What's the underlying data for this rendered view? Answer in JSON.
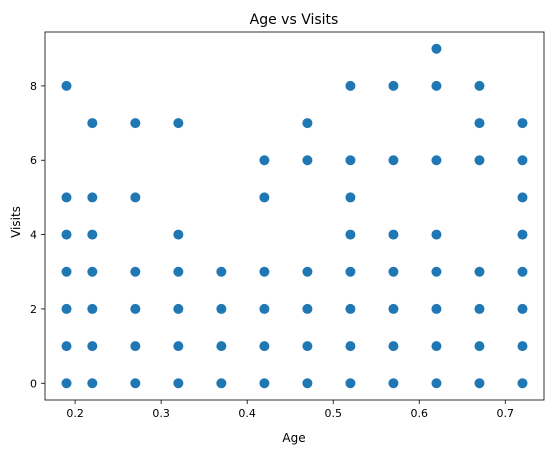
{
  "chart_data": {
    "type": "scatter",
    "title": "Age vs Visits",
    "xlabel": "Age",
    "ylabel": "Visits",
    "xlim": [
      0.165,
      0.745
    ],
    "ylim": [
      -0.45,
      9.45
    ],
    "xticks": [
      0.2,
      0.3,
      0.4,
      0.5,
      0.6,
      0.7
    ],
    "xtick_labels": [
      "0.2",
      "0.3",
      "0.4",
      "0.5",
      "0.6",
      "0.7"
    ],
    "yticks": [
      0,
      2,
      4,
      6,
      8
    ],
    "ytick_labels": [
      "0",
      "2",
      "4",
      "6",
      "8"
    ],
    "grid": false,
    "color": "#1f77b4",
    "series": [
      {
        "points": [
          [
            0.19,
            0
          ],
          [
            0.19,
            1
          ],
          [
            0.19,
            2
          ],
          [
            0.19,
            3
          ],
          [
            0.19,
            4
          ],
          [
            0.19,
            5
          ],
          [
            0.19,
            8
          ],
          [
            0.22,
            0
          ],
          [
            0.22,
            1
          ],
          [
            0.22,
            2
          ],
          [
            0.22,
            3
          ],
          [
            0.22,
            4
          ],
          [
            0.22,
            5
          ],
          [
            0.22,
            7
          ],
          [
            0.27,
            0
          ],
          [
            0.27,
            1
          ],
          [
            0.27,
            2
          ],
          [
            0.27,
            3
          ],
          [
            0.27,
            5
          ],
          [
            0.27,
            7
          ],
          [
            0.32,
            0
          ],
          [
            0.32,
            1
          ],
          [
            0.32,
            2
          ],
          [
            0.32,
            3
          ],
          [
            0.32,
            4
          ],
          [
            0.32,
            7
          ],
          [
            0.37,
            0
          ],
          [
            0.37,
            1
          ],
          [
            0.37,
            2
          ],
          [
            0.37,
            3
          ],
          [
            0.42,
            0
          ],
          [
            0.42,
            1
          ],
          [
            0.42,
            2
          ],
          [
            0.42,
            3
          ],
          [
            0.42,
            5
          ],
          [
            0.42,
            6
          ],
          [
            0.47,
            0
          ],
          [
            0.47,
            1
          ],
          [
            0.47,
            2
          ],
          [
            0.47,
            3
          ],
          [
            0.47,
            6
          ],
          [
            0.47,
            7
          ],
          [
            0.52,
            0
          ],
          [
            0.52,
            1
          ],
          [
            0.52,
            2
          ],
          [
            0.52,
            3
          ],
          [
            0.52,
            4
          ],
          [
            0.52,
            5
          ],
          [
            0.52,
            6
          ],
          [
            0.52,
            8
          ],
          [
            0.57,
            0
          ],
          [
            0.57,
            1
          ],
          [
            0.57,
            2
          ],
          [
            0.57,
            3
          ],
          [
            0.57,
            4
          ],
          [
            0.57,
            6
          ],
          [
            0.57,
            8
          ],
          [
            0.62,
            0
          ],
          [
            0.62,
            1
          ],
          [
            0.62,
            2
          ],
          [
            0.62,
            3
          ],
          [
            0.62,
            4
          ],
          [
            0.62,
            6
          ],
          [
            0.62,
            8
          ],
          [
            0.62,
            9
          ],
          [
            0.67,
            0
          ],
          [
            0.67,
            1
          ],
          [
            0.67,
            2
          ],
          [
            0.67,
            3
          ],
          [
            0.67,
            6
          ],
          [
            0.67,
            7
          ],
          [
            0.67,
            8
          ],
          [
            0.72,
            0
          ],
          [
            0.72,
            1
          ],
          [
            0.72,
            2
          ],
          [
            0.72,
            3
          ],
          [
            0.72,
            4
          ],
          [
            0.72,
            5
          ],
          [
            0.72,
            6
          ],
          [
            0.72,
            7
          ]
        ]
      }
    ]
  }
}
